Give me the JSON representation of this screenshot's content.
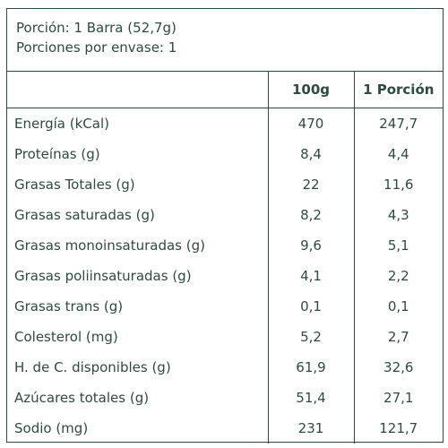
{
  "header": {
    "serving_size": "Porción: 1 Barra (52,7g)",
    "servings_per_container": "Porciones por envase: 1"
  },
  "table": {
    "columns": [
      "",
      "100g",
      "1 Porción"
    ],
    "rows": [
      {
        "label": "Energía (kCal)",
        "per_100g": "470",
        "per_serving": "247,7"
      },
      {
        "label": "Proteínas (g)",
        "per_100g": "8,4",
        "per_serving": "4,4"
      },
      {
        "label": "Grasas Totales (g)",
        "per_100g": "22",
        "per_serving": "11,6"
      },
      {
        "label": "Grasas saturadas (g)",
        "per_100g": "8,2",
        "per_serving": "4,3"
      },
      {
        "label": "Grasas monoinsaturadas (g)",
        "per_100g": "9,6",
        "per_serving": "5,1"
      },
      {
        "label": "Grasas poliinsaturadas (g)",
        "per_100g": "4,1",
        "per_serving": "2,2"
      },
      {
        "label": "Grasas trans (g)",
        "per_100g": "0,1",
        "per_serving": "0,1"
      },
      {
        "label": "Colesterol (mg)",
        "per_100g": "5,2",
        "per_serving": "2,7"
      },
      {
        "label": "H. de C. disponibles (g)",
        "per_100g": "61,9",
        "per_serving": "32,6"
      },
      {
        "label": "Azúcares totales (g)",
        "per_100g": "51,4",
        "per_serving": "27,1"
      },
      {
        "label": "Sodio (mg)",
        "per_100g": "231",
        "per_serving": "121,7"
      }
    ]
  },
  "colors": {
    "text": "#2f4a3e",
    "border": "#2f4a3e",
    "background": "#ffffff"
  }
}
